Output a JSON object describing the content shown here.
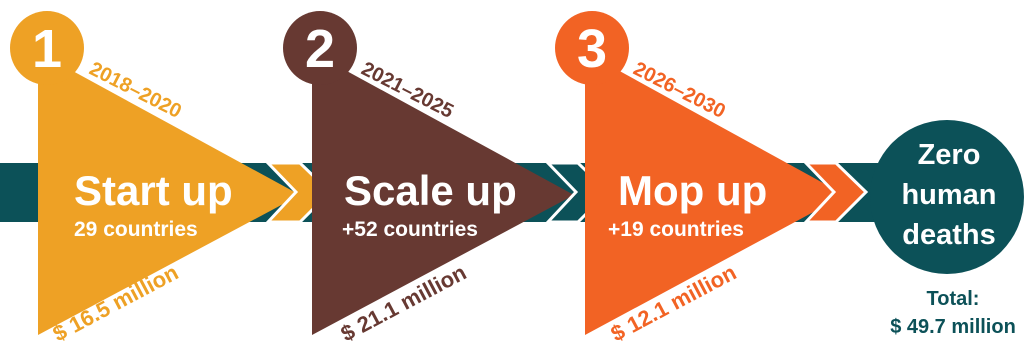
{
  "colors": {
    "band": "#0c5158",
    "phase1": "#eea125",
    "phase2": "#673932",
    "phase3": "#f26324",
    "goal": "#0c5158",
    "white": "#ffffff"
  },
  "phases": [
    {
      "number": "1",
      "years": "2018–2020",
      "title": "Start up",
      "countries": "29 countries",
      "cost": "$ 16.5 million"
    },
    {
      "number": "2",
      "years": "2021–2025",
      "title": "Scale up",
      "countries": "+52 countries",
      "cost": "$ 21.1 million"
    },
    {
      "number": "3",
      "years": "2026–2030",
      "title": "Mop up",
      "countries": "+19 countries",
      "cost": "$ 12.1 million"
    }
  ],
  "goal": {
    "line1": "Zero",
    "line2": "human",
    "line3": "deaths"
  },
  "total": {
    "label": "Total:",
    "amount": "$ 49.7 million"
  }
}
